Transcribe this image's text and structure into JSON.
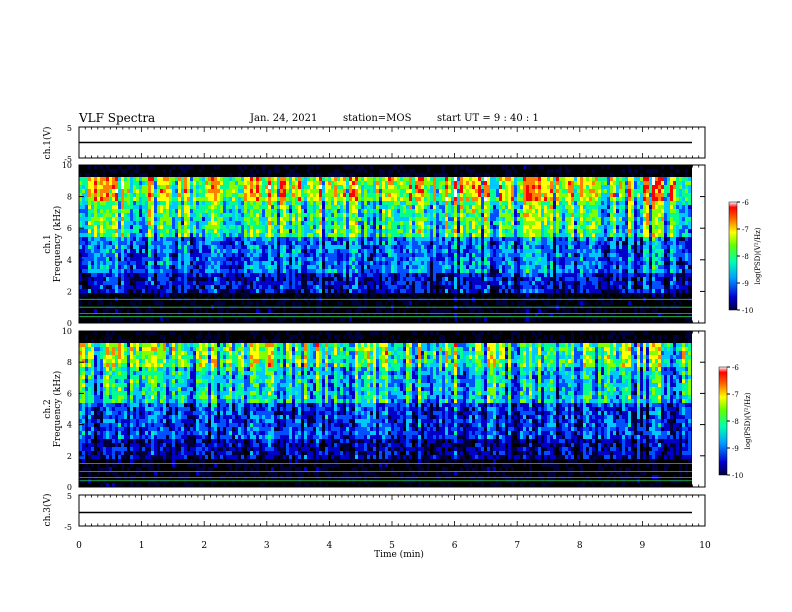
{
  "header": {
    "title": "VLF Spectra",
    "date": "Jan. 24, 2021",
    "station": "station=MOS",
    "start": "start UT =  9 : 40 : 1"
  },
  "colors": {
    "colormap": [
      "#000000",
      "#00003a",
      "#0000c8",
      "#0050ff",
      "#00c8ff",
      "#00ff90",
      "#80ff00",
      "#ffff00",
      "#ff8000",
      "#ff0000",
      "#ffffff"
    ]
  },
  "chart_data": [
    {
      "type": "line",
      "panel": "ch1-waveform",
      "ylabel": "ch.1(V)",
      "ylim": [
        -5,
        5
      ],
      "yticks": [
        "5",
        "-5"
      ],
      "series": [
        {
          "values_constant": 0
        }
      ]
    },
    {
      "type": "heatmap",
      "panel": "ch1-spectrogram",
      "ylabel_line1": "ch.1",
      "ylabel_line2": "Frequency (kHz)",
      "ylim": [
        0,
        10
      ],
      "yticks": [
        "0",
        "2",
        "4",
        "6",
        "8",
        "10"
      ],
      "xlim": [
        0,
        9.83
      ],
      "colorbar": {
        "label": "log(PSD)(V²/Hz)",
        "range": [
          -10,
          -6
        ],
        "ticks": [
          "-6",
          "-7",
          "-8",
          "-9",
          "-10"
        ]
      }
    },
    {
      "type": "heatmap",
      "panel": "ch2-spectrogram",
      "ylabel_line1": "ch.2",
      "ylabel_line2": "Frequency (kHz)",
      "ylim": [
        0,
        10
      ],
      "yticks": [
        "0",
        "2",
        "4",
        "6",
        "8",
        "10"
      ],
      "xlim": [
        0,
        9.83
      ],
      "colorbar": {
        "label": "log(PSD)(V²/Hz)",
        "range": [
          -10,
          -6
        ],
        "ticks": [
          "-6",
          "-7",
          "-8",
          "-9",
          "-10"
        ]
      }
    },
    {
      "type": "line",
      "panel": "ch3-waveform",
      "ylabel": "ch.3(V)",
      "ylim": [
        -5,
        5
      ],
      "yticks": [
        "5",
        "-5"
      ],
      "series": [
        {
          "values_constant": 0
        }
      ]
    }
  ],
  "xaxis": {
    "label": "Time (min)",
    "range": [
      0,
      10
    ],
    "ticks": [
      "0",
      "1",
      "2",
      "3",
      "4",
      "5",
      "6",
      "7",
      "8",
      "9",
      "10"
    ]
  }
}
